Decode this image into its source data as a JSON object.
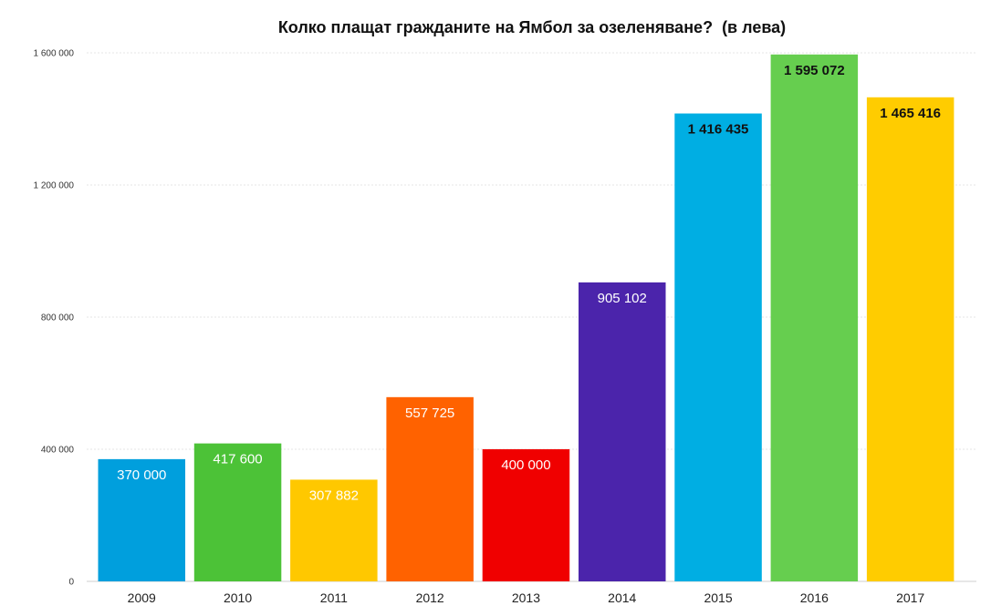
{
  "chart_data": {
    "type": "bar",
    "title": "Колко плащат гражданите на Ямбол за озеленяване?  (в лева)",
    "xlabel": "",
    "ylabel": "",
    "ylim": [
      0,
      1600000
    ],
    "grid": true,
    "y_ticks": [
      0,
      400000,
      800000,
      1200000,
      1600000
    ],
    "y_tick_labels": [
      "0",
      "400 000",
      "800 000",
      "1 200 000",
      "1 600 000"
    ],
    "categories": [
      "2009",
      "2010",
      "2011",
      "2012",
      "2013",
      "2014",
      "2015",
      "2016",
      "2017"
    ],
    "values": [
      370000,
      417600,
      307882,
      557725,
      400000,
      905102,
      1416435,
      1595072,
      1465416
    ],
    "value_labels": [
      "370 000",
      "417 600",
      "307 882",
      "557 725",
      "400 000",
      "905 102",
      "1 416 435",
      "1 595 072",
      "1 465 416"
    ],
    "bar_colors": [
      "#009FDD",
      "#4CC237",
      "#FFC800",
      "#FF6200",
      "#F00000",
      "#4B24AB",
      "#00AEE3",
      "#66CE4F",
      "#FFCC00"
    ],
    "value_label_colors": [
      "#FFFFFF",
      "#FFFFFF",
      "#FFFFFF",
      "#FFFFFF",
      "#FFFFFF",
      "#FFFFFF",
      "#111111",
      "#111111",
      "#111111"
    ],
    "value_label_bold": [
      false,
      false,
      false,
      false,
      false,
      false,
      true,
      true,
      true
    ]
  }
}
